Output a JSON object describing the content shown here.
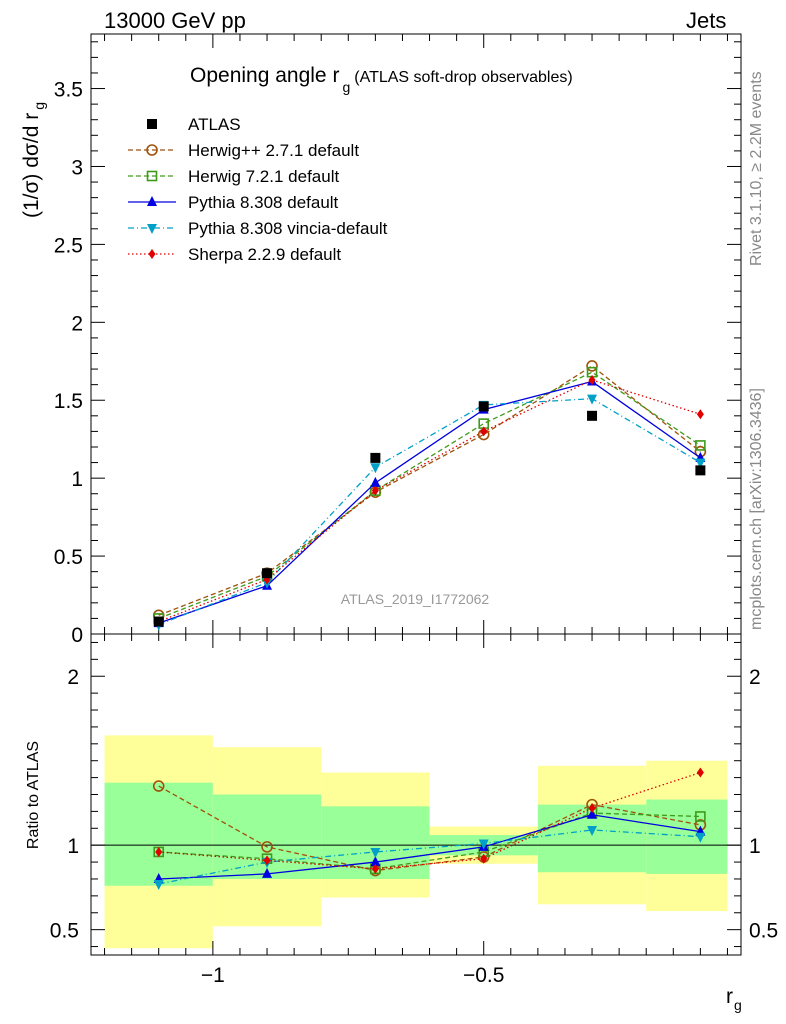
{
  "header": {
    "left": "13000 GeV pp",
    "right": "Jets"
  },
  "side_labels": {
    "rivet": "Rivet 3.1.10, ≥ 2.2M events",
    "mcplots": "mcplots.cern.ch [arXiv:1306.3436]"
  },
  "chart_data": [
    {
      "type": "line",
      "title": "Opening angle r",
      "title_sub": "g",
      "title_suffix": "(ATLAS soft-drop observables)",
      "ylabel": "(1/σ) dσ/d r",
      "ylabel_sub": "g",
      "watermark": "ATLAS_2019_I1772062",
      "ylim": [
        0,
        3.85
      ],
      "yticks": [
        0,
        0.5,
        1,
        1.5,
        2,
        2.5,
        3,
        3.5
      ],
      "ytick_labels": [
        "0",
        "0.5",
        "1",
        "1.5",
        "2",
        "2.5",
        "3",
        "3.5"
      ],
      "x": [
        -1.1,
        -0.9,
        -0.7,
        -0.5,
        -0.3,
        -0.1
      ],
      "data": {
        "name": "ATLAS",
        "values": [
          0.08,
          0.39,
          1.13,
          1.46,
          1.4,
          1.05
        ]
      },
      "series": [
        {
          "name": "Herwig++ 2.7.1 default",
          "values": [
            0.12,
            0.39,
            0.91,
            1.28,
            1.72,
            1.17
          ],
          "color": "#a0520a",
          "marker": "circle-open",
          "dash": "5,3"
        },
        {
          "name": "Herwig 7.2.1 default",
          "values": [
            0.1,
            0.37,
            0.92,
            1.35,
            1.68,
            1.21
          ],
          "color": "#3f9a1a",
          "marker": "square-open",
          "dash": "5,3"
        },
        {
          "name": "Pythia 8.308 default",
          "values": [
            0.07,
            0.31,
            0.97,
            1.44,
            1.62,
            1.13
          ],
          "color": "#0000e0",
          "marker": "triangle-up",
          "dash": ""
        },
        {
          "name": "Pythia 8.308 vincia-default",
          "values": [
            0.06,
            0.33,
            1.07,
            1.47,
            1.51,
            1.1
          ],
          "color": "#00a0c8",
          "marker": "triangle-down",
          "dash": "6,3,1,3"
        },
        {
          "name": "Sherpa 2.2.9 default",
          "values": [
            0.08,
            0.35,
            0.92,
            1.3,
            1.63,
            1.41
          ],
          "color": "#e00000",
          "marker": "diamond",
          "dash": "1.5,2.5"
        }
      ]
    },
    {
      "type": "line",
      "xlabel": "r",
      "xlabel_sub": "g",
      "ylabel": "Ratio to ATLAS",
      "xlim": [
        -1.225,
        -0.025
      ],
      "ylim": [
        0.35,
        2.25
      ],
      "xticks": [
        -1,
        -0.5
      ],
      "xtick_labels": [
        "−1",
        "−0.5"
      ],
      "yticks": [
        0.5,
        1,
        2
      ],
      "ytick_labels": [
        "0.5",
        "1",
        "2"
      ],
      "bins": [
        [
          -1.2,
          -1.0
        ],
        [
          -1.0,
          -0.8
        ],
        [
          -0.8,
          -0.6
        ],
        [
          -0.6,
          -0.4
        ],
        [
          -0.4,
          -0.2
        ],
        [
          -0.2,
          -0.05
        ]
      ],
      "band_1sigma": [
        [
          0.76,
          1.37
        ],
        [
          0.8,
          1.3
        ],
        [
          0.8,
          1.23
        ],
        [
          0.94,
          1.06
        ],
        [
          0.84,
          1.24
        ],
        [
          0.83,
          1.27
        ]
      ],
      "band_2sigma": [
        [
          0.39,
          1.65
        ],
        [
          0.52,
          1.58
        ],
        [
          0.69,
          1.43
        ],
        [
          0.89,
          1.11
        ],
        [
          0.65,
          1.47
        ],
        [
          0.61,
          1.5
        ]
      ],
      "series": [
        {
          "name": "Herwig++ 2.7.1 default",
          "values": [
            1.35,
            0.99,
            0.85,
            0.93,
            1.24,
            1.12
          ]
        },
        {
          "name": "Herwig 7.2.1 default",
          "values": [
            0.96,
            0.92,
            0.86,
            0.96,
            1.19,
            1.17
          ]
        },
        {
          "name": "Pythia 8.308 default",
          "values": [
            0.8,
            0.83,
            0.9,
            0.99,
            1.18,
            1.08
          ]
        },
        {
          "name": "Pythia 8.308 vincia-default",
          "values": [
            0.77,
            0.9,
            0.96,
            1.01,
            1.09,
            1.05
          ]
        },
        {
          "name": "Sherpa 2.2.9 default",
          "values": [
            0.96,
            0.91,
            0.86,
            0.92,
            1.22,
            1.43
          ]
        }
      ]
    }
  ]
}
